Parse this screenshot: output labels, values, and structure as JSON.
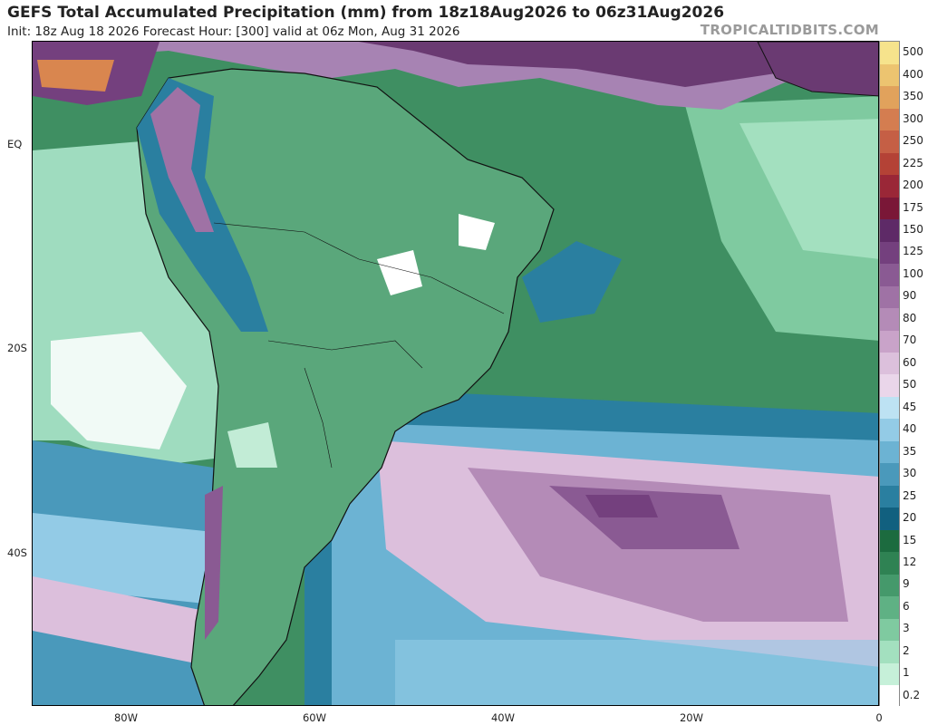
{
  "header": {
    "title": "GEFS Total Accumulated Precipitation (mm) from 18z18Aug2026 to 06z31Aug2026",
    "subtitle": "Init: 18z Aug 18 2026   Forecast Hour: [300]   valid at 06z Mon, Aug 31 2026",
    "brand": "TROPICALTIDBITS.COM"
  },
  "axes": {
    "lat_ticks": [
      "EQ",
      "20S",
      "40S"
    ],
    "lon_ticks": [
      "80W",
      "60W",
      "40W",
      "20W",
      "0"
    ]
  },
  "legend": {
    "levels": [
      "0.2",
      "1",
      "2",
      "3",
      "6",
      "9",
      "12",
      "15",
      "20",
      "25",
      "30",
      "35",
      "40",
      "45",
      "50",
      "60",
      "70",
      "80",
      "90",
      "100",
      "125",
      "150",
      "175",
      "200",
      "225",
      "250",
      "300",
      "350",
      "400",
      "500"
    ],
    "colors": [
      "#ffffff",
      "#c6f0d9",
      "#a3e0bf",
      "#7fcaa0",
      "#5fb184",
      "#45996b",
      "#2f8253",
      "#1c6b3f",
      "#11607f",
      "#2a7fa0",
      "#4a99bb",
      "#6cb3d3",
      "#93cbe6",
      "#bde2f3",
      "#ead6ea",
      "#dcc0dc",
      "#c9a3c9",
      "#b48bb7",
      "#9f72a5",
      "#8a5a93",
      "#74407e",
      "#5e2a67",
      "#7a1737",
      "#9a2737",
      "#b44236",
      "#c55f45",
      "#d47d50",
      "#e1a25c",
      "#ecc470",
      "#f6e38c"
    ]
  },
  "map": {
    "region": "South America and South Atlantic",
    "colors": {
      "ocean_green": "#3f8f62",
      "ocean_light": "#9fdcbf",
      "ocean_blue": "#3f8db3",
      "ocean_purple": "#a783b3",
      "ocean_pink": "#dcbfdc",
      "land_green": "#5aa77b",
      "land_light": "#c2ecd6",
      "dry_white": "#ffffff",
      "itcz_purple": "#6a3a72",
      "heavy_orange": "#d9864f",
      "boundary": "#111111"
    }
  }
}
